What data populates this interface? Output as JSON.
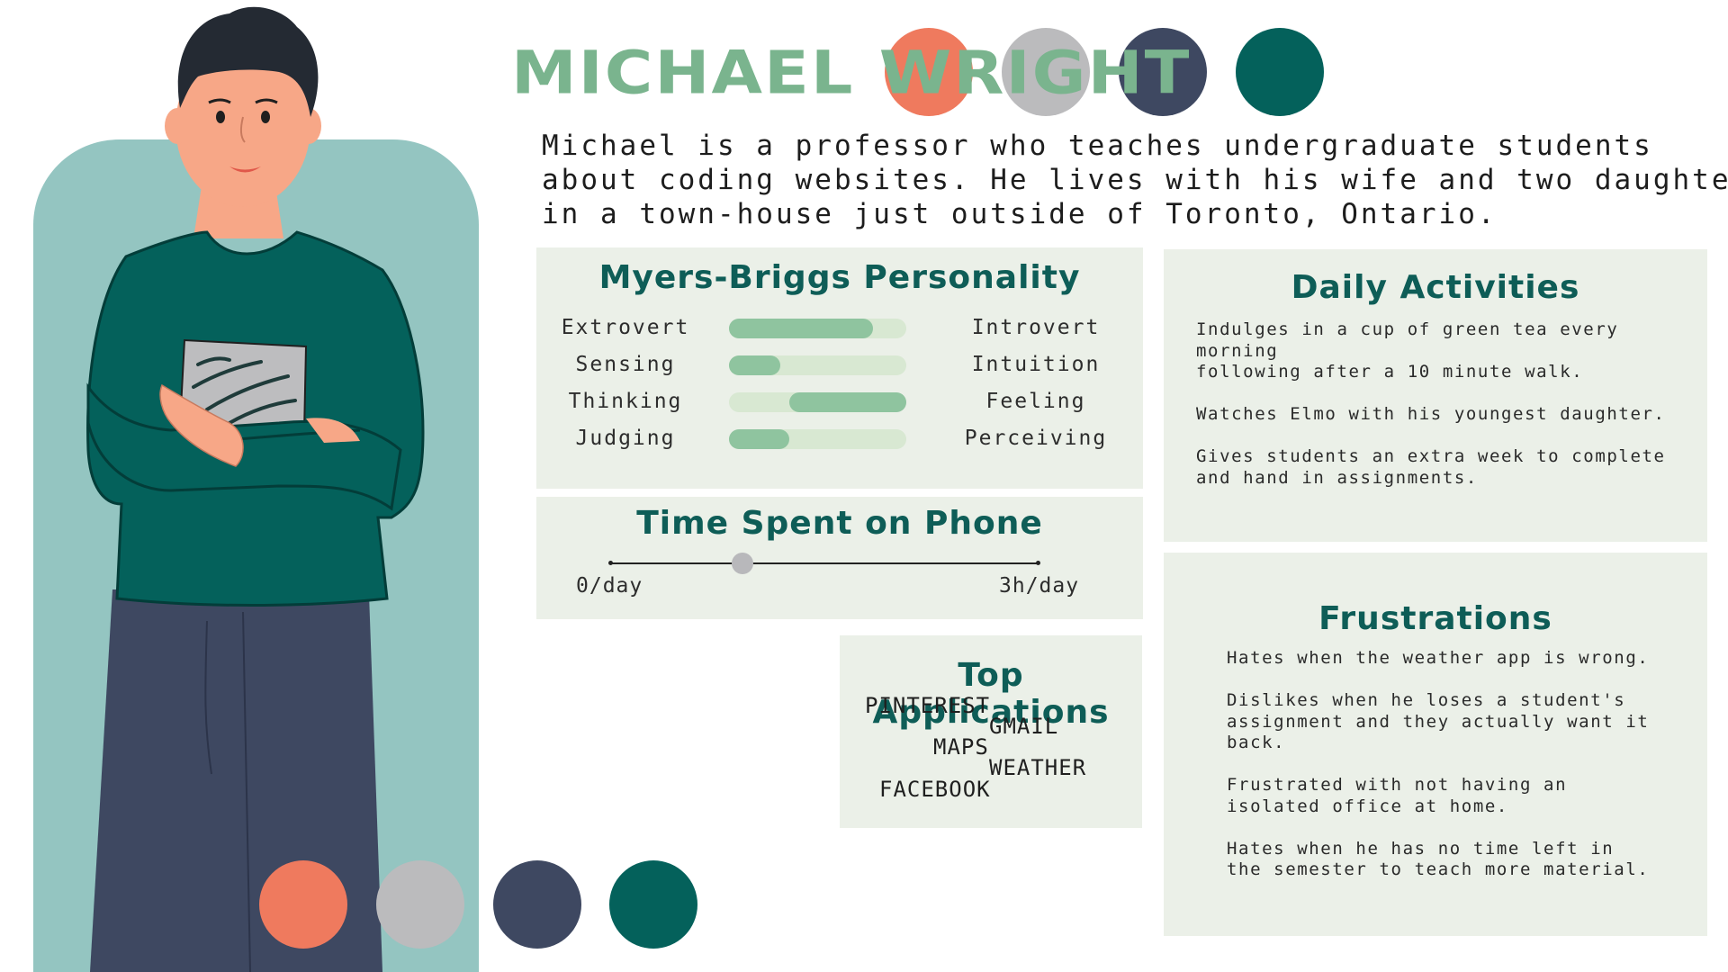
{
  "persona": {
    "name": "MICHAEL WRIGHT",
    "intro_lines": [
      "Michael is a professor who teaches undergraduate students",
      "about coding websites. He lives with his wife and two daughters",
      "in a town-house just outside of Toronto, Ontario."
    ]
  },
  "palette": [
    "#ef7a5e",
    "#bbbbbd",
    "#3e4861",
    "#04615b"
  ],
  "myers_briggs": {
    "title": "Myers-Briggs Personality",
    "rows": [
      {
        "left": "Extrovert",
        "right": "Introvert",
        "fill_start": 0.0,
        "fill_end": 0.81
      },
      {
        "left": "Sensing",
        "right": "Intuition",
        "fill_start": 0.0,
        "fill_end": 0.29
      },
      {
        "left": "Thinking",
        "right": "Feeling",
        "fill_start": 0.34,
        "fill_end": 1.0
      },
      {
        "left": "Judging",
        "right": "Perceiving",
        "fill_start": 0.0,
        "fill_end": 0.34
      }
    ]
  },
  "phone": {
    "title": "Time Spent on Phone",
    "min_label": "0/day",
    "max_label": "3h/day",
    "value_hours": 0.93
  },
  "apps": {
    "title": "Top Applications",
    "items": [
      "PINTEREST",
      "GMAIL",
      "MAPS",
      "WEATHER",
      "FACEBOOK"
    ]
  },
  "daily": {
    "title": "Daily Activities",
    "items": [
      "Indulges in a cup of green tea every morning\nfollowing after a 10 minute walk.",
      "Watches Elmo with his youngest daughter.",
      "Gives students an extra week to complete\nand hand in assignments."
    ]
  },
  "frustrations": {
    "title": "Frustrations",
    "items": [
      "Hates when the weather app is wrong.",
      "Dislikes when he loses a student's\nassignment and they actually want it\nback.",
      "Frustrated with not having an\nisolated office at home.",
      "Hates when he has no time left in\nthe semester to teach more material."
    ]
  }
}
